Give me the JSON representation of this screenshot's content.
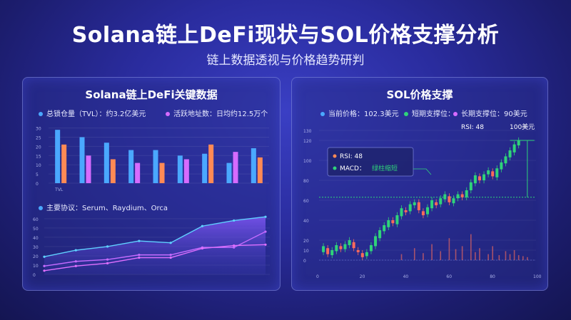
{
  "header": {
    "title": "Solana链上DeFi现状与SOL价格支撑分析",
    "subtitle": "链上数据透视与价格趋势研判"
  },
  "left_panel": {
    "title": "Solana链上DeFi关键数据",
    "legend_tvl": "总锁仓量（TVL）：约3.2亿美元",
    "legend_active": "活跃地址数：日均约12.5万个",
    "protocols_label": "主要协议：Serum、Raydium、Orca"
  },
  "right_panel": {
    "title": "SOL价格支撑",
    "legend_price": "当前价格：102.3美元",
    "legend_short": "短期支撑位：",
    "legend_long": "长期支撑位：90美元",
    "rsi_label": "RSI: 48",
    "price_label": "100美元",
    "box_rsi": "RSI: 48",
    "box_macd_prefix": "MACD：",
    "box_macd_value": "绿柱缩短"
  },
  "colors": {
    "blue": "#4aa8ff",
    "orange": "#ff8a55",
    "pink": "#d66bff",
    "green": "#2fd37a",
    "red": "#ff6b5a"
  },
  "chart_data": [
    {
      "type": "bar",
      "title": "Solana链上DeFi关键数据",
      "categories": [
        "TVL",
        "",
        "",
        "",
        "",
        "",
        "",
        "",
        ""
      ],
      "series": [
        {
          "name": "总锁仓量（TVL）：约3.2亿美元",
          "values": [
            29,
            25,
            22,
            18,
            18,
            15,
            16,
            11,
            19
          ]
        },
        {
          "name": "活跃地址数：日均约12.5万个",
          "values": [
            21,
            15,
            13,
            11,
            11,
            13,
            21,
            17,
            14
          ]
        }
      ],
      "yticks": [
        0,
        5,
        10,
        15,
        20,
        25,
        30
      ],
      "ylim": [
        0,
        31
      ]
    },
    {
      "type": "area",
      "title": "主要协议：Serum、Raydium、Orca",
      "x": [
        0,
        1,
        2,
        3,
        4,
        5,
        6,
        7
      ],
      "series": [
        {
          "values": [
            19,
            26,
            30,
            36,
            34,
            52,
            58,
            62
          ]
        },
        {
          "values": [
            9,
            14,
            16,
            21,
            21,
            29,
            29,
            46
          ]
        },
        {
          "values": [
            4,
            9,
            12,
            18,
            18,
            28,
            31,
            32
          ]
        }
      ],
      "yticks": [
        0,
        10,
        20,
        30,
        40,
        50,
        60
      ],
      "ylim": [
        0,
        66
      ]
    },
    {
      "type": "line",
      "title": "SOL价格支撑",
      "x_ticks": [
        0,
        20,
        40,
        60,
        80,
        100
      ],
      "y_ticks": [
        0,
        10,
        20,
        40,
        60,
        80,
        100,
        120,
        130
      ],
      "xlim": [
        0,
        100
      ],
      "candles": [
        [
          2,
          8,
          14
        ],
        [
          4,
          12,
          6
        ],
        [
          6,
          5,
          10
        ],
        [
          8,
          9,
          15
        ],
        [
          10,
          14,
          11
        ],
        [
          12,
          11,
          16
        ],
        [
          14,
          15,
          20
        ],
        [
          16,
          18,
          12
        ],
        [
          18,
          10,
          8
        ],
        [
          20,
          7,
          3
        ],
        [
          22,
          4,
          8
        ],
        [
          24,
          9,
          15
        ],
        [
          26,
          14,
          24
        ],
        [
          28,
          22,
          30
        ],
        [
          30,
          29,
          35
        ],
        [
          32,
          33,
          40
        ],
        [
          34,
          40,
          37
        ],
        [
          36,
          36,
          45
        ],
        [
          38,
          44,
          52
        ],
        [
          40,
          50,
          48
        ],
        [
          42,
          49,
          56
        ],
        [
          44,
          55,
          58
        ],
        [
          46,
          58,
          50
        ],
        [
          48,
          49,
          45
        ],
        [
          50,
          46,
          53
        ],
        [
          52,
          52,
          60
        ],
        [
          54,
          58,
          55
        ],
        [
          56,
          56,
          62
        ],
        [
          58,
          61,
          66
        ],
        [
          60,
          64,
          58
        ],
        [
          62,
          57,
          62
        ],
        [
          64,
          62,
          66
        ],
        [
          66,
          66,
          63
        ],
        [
          68,
          63,
          70
        ],
        [
          70,
          70,
          78
        ],
        [
          72,
          77,
          85
        ],
        [
          74,
          84,
          80
        ],
        [
          76,
          80,
          86
        ],
        [
          78,
          86,
          90
        ],
        [
          80,
          89,
          84
        ],
        [
          82,
          83,
          92
        ],
        [
          84,
          91,
          98
        ],
        [
          86,
          97,
          104
        ],
        [
          88,
          103,
          110
        ],
        [
          90,
          108,
          116
        ],
        [
          92,
          115,
          120
        ]
      ],
      "volume": [
        [
          38,
          6
        ],
        [
          44,
          12
        ],
        [
          48,
          7
        ],
        [
          52,
          16
        ],
        [
          56,
          9
        ],
        [
          60,
          22
        ],
        [
          63,
          11
        ],
        [
          66,
          14
        ],
        [
          70,
          26
        ],
        [
          72,
          8
        ],
        [
          74,
          12
        ],
        [
          78,
          6
        ],
        [
          80,
          14
        ],
        [
          83,
          5
        ],
        [
          86,
          9
        ],
        [
          88,
          6
        ],
        [
          90,
          10
        ],
        [
          92,
          5
        ],
        [
          94,
          4
        ],
        [
          96,
          3
        ]
      ],
      "support_level": 63,
      "price_level": 120,
      "ylim": [
        0,
        130
      ]
    }
  ]
}
